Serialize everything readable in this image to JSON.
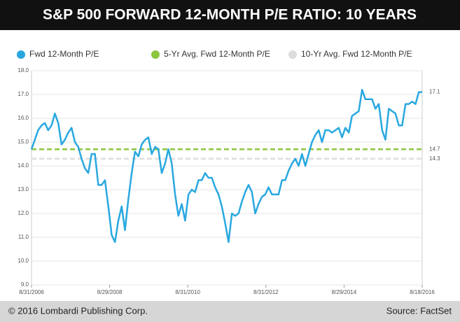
{
  "chart_data": {
    "type": "line",
    "title": "S&P 500 FORWARD 12-MONTH P/E RATIO: 10 YEARS",
    "xticks": [
      "8/31/2006",
      "8/29/2008",
      "8/31/2010",
      "8/31/2012",
      "8/29/2014",
      "8/18/2016"
    ],
    "ylim": [
      9,
      18
    ],
    "yticks": [
      {
        "value": 9,
        "label": "9.0"
      },
      {
        "value": 10,
        "label": "10.0"
      },
      {
        "value": 11,
        "label": "11.0"
      },
      {
        "value": 12,
        "label": "12.0"
      },
      {
        "value": 13,
        "label": "13.0"
      },
      {
        "value": 14,
        "label": "14.0"
      },
      {
        "value": 15,
        "label": "15.0"
      },
      {
        "value": 16,
        "label": "16.0"
      },
      {
        "value": 17,
        "label": "17.0"
      },
      {
        "value": 18,
        "label": "18.0"
      }
    ],
    "grid": true,
    "series": [
      {
        "name": "Fwd 12-Month P/E",
        "color": "#29a8e0",
        "values": [
          14.7,
          15.1,
          15.5,
          15.7,
          15.8,
          15.5,
          15.7,
          16.2,
          15.8,
          14.9,
          15.1,
          15.4,
          15.6,
          15.0,
          14.8,
          14.3,
          13.9,
          13.7,
          14.5,
          14.5,
          13.2,
          13.2,
          13.4,
          12.3,
          11.1,
          10.8,
          11.7,
          12.3,
          11.3,
          12.6,
          13.7,
          14.6,
          14.4,
          14.9,
          15.1,
          15.2,
          14.5,
          14.8,
          14.7,
          13.7,
          14.1,
          14.7,
          14.1,
          12.8,
          11.9,
          12.4,
          11.7,
          12.8,
          13.0,
          12.9,
          13.4,
          13.4,
          13.7,
          13.5,
          13.5,
          13.1,
          12.8,
          12.3,
          11.6,
          10.8,
          12.0,
          11.9,
          12.0,
          12.5,
          12.9,
          13.2,
          12.9,
          12.0,
          12.4,
          12.7,
          12.8,
          13.1,
          12.8,
          12.8,
          12.8,
          13.4,
          13.4,
          13.8,
          14.1,
          14.3,
          14.0,
          14.5,
          14.0,
          14.5,
          15.0,
          15.3,
          15.5,
          15.0,
          15.5,
          15.5,
          15.4,
          15.5,
          15.6,
          15.2,
          15.6,
          15.4,
          16.1,
          16.2,
          16.3,
          17.2,
          16.8,
          16.8,
          16.8,
          16.4,
          16.6,
          15.5,
          15.1,
          16.4,
          16.3,
          16.2,
          15.7,
          15.7,
          16.6,
          16.6,
          16.7,
          16.6,
          17.1,
          17.1
        ]
      },
      {
        "name": "5-Yr Avg. Fwd 12-Month P/E",
        "color": "#8cc63f",
        "values": [
          14.7
        ]
      },
      {
        "name": "10-Yr Avg. Fwd 12-Month P/E",
        "color": "#dddddd",
        "values": [
          14.3
        ]
      }
    ]
  },
  "footer": {
    "left": "© 2016 Lombardi Publishing Corp.",
    "right": "Source: FactSet"
  }
}
